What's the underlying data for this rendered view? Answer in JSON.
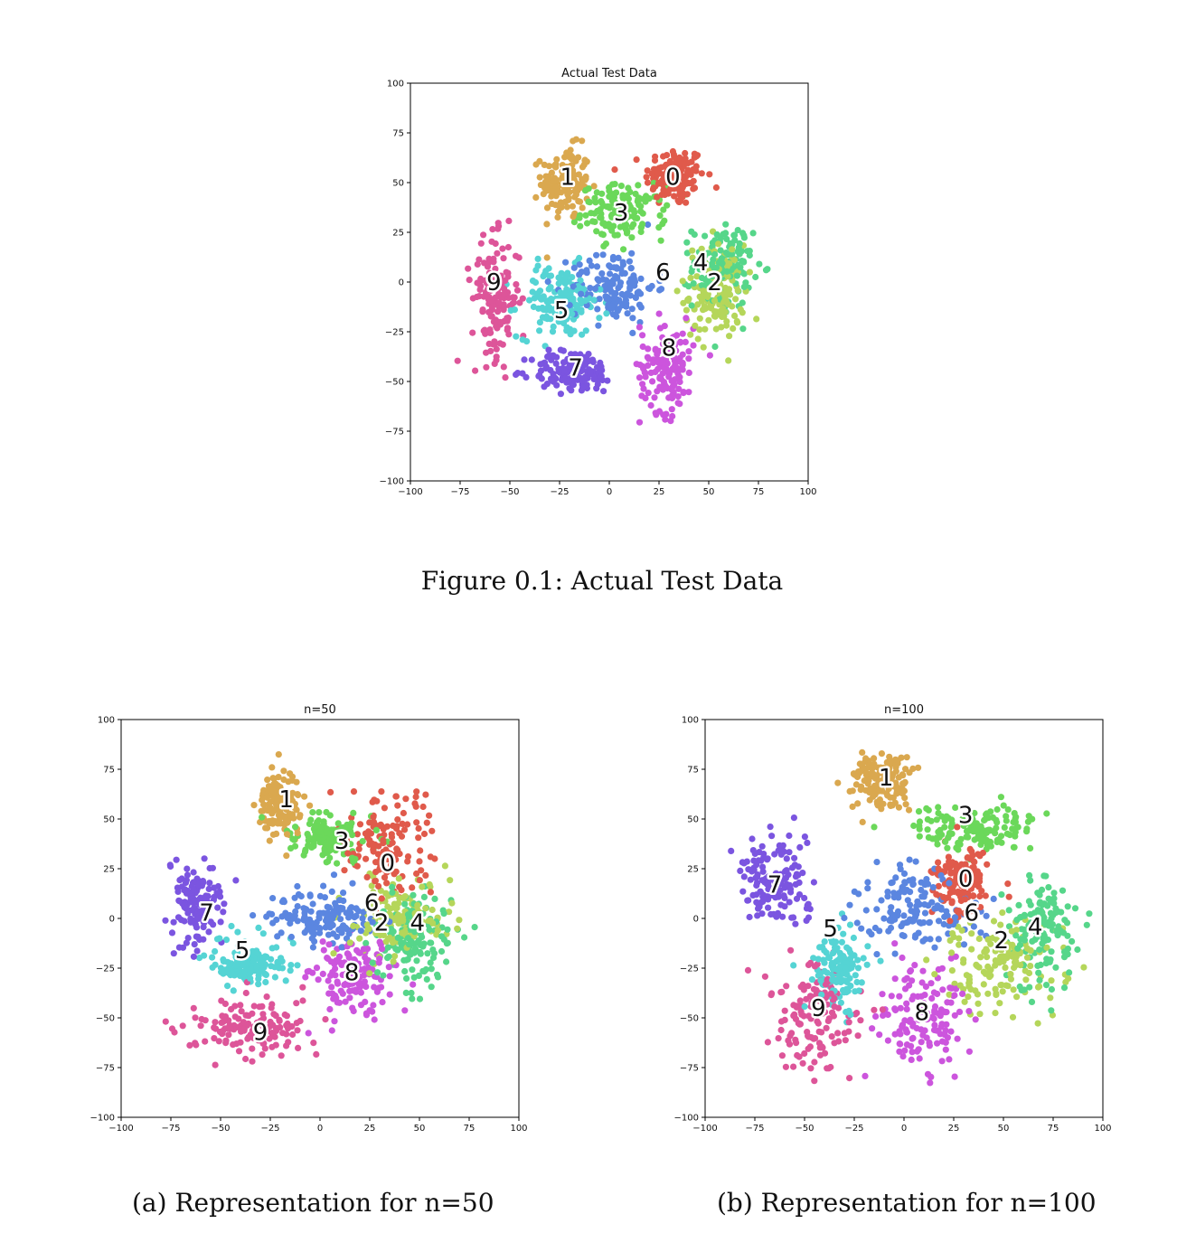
{
  "figure_caption": "Figure 0.1: Actual Test Data",
  "subcaption_a": "(a) Representation for n=50",
  "subcaption_b": "(b) Representation for n=100",
  "colors": {
    "0": "#e05a4b",
    "1": "#daa84f",
    "2": "#b5d65a",
    "3": "#6bd85a",
    "4": "#56d68a",
    "5": "#55d4d4",
    "6": "#5b86e0",
    "7": "#7b55e0",
    "8": "#cc55dd",
    "9": "#dd5599"
  },
  "chart_data": [
    {
      "type": "scatter",
      "title": "Actual Test Data",
      "xlim": [
        -100,
        100
      ],
      "ylim": [
        -100,
        100
      ],
      "xticks": [
        -100,
        -75,
        -50,
        -25,
        0,
        25,
        50,
        75,
        100
      ],
      "yticks": [
        -100,
        -75,
        -50,
        -25,
        0,
        25,
        50,
        75,
        100
      ],
      "grid": false,
      "clusters": [
        {
          "label": "0",
          "center": [
            33,
            53
          ],
          "spread": [
            10,
            10
          ]
        },
        {
          "label": "1",
          "center": [
            -22,
            50
          ],
          "spread": [
            8,
            12
          ]
        },
        {
          "label": "2",
          "center": [
            53,
            -5
          ],
          "spread": [
            10,
            16
          ]
        },
        {
          "label": "3",
          "center": [
            7,
            35
          ],
          "spread": [
            14,
            9
          ]
        },
        {
          "label": "4",
          "center": [
            57,
            8
          ],
          "spread": [
            10,
            14
          ]
        },
        {
          "label": "5",
          "center": [
            -25,
            -10
          ],
          "spread": [
            14,
            12
          ]
        },
        {
          "label": "6",
          "center": [
            2,
            -2
          ],
          "spread": [
            14,
            12
          ]
        },
        {
          "label": "7",
          "center": [
            -18,
            -45
          ],
          "spread": [
            14,
            7
          ]
        },
        {
          "label": "8",
          "center": [
            29,
            -42
          ],
          "spread": [
            9,
            16
          ]
        },
        {
          "label": "9",
          "center": [
            -57,
            -8
          ],
          "spread": [
            8,
            20
          ]
        }
      ],
      "annotations": [
        {
          "text": "0",
          "x": 32,
          "y": 53
        },
        {
          "text": "1",
          "x": -21,
          "y": 53
        },
        {
          "text": "3",
          "x": 6,
          "y": 35
        },
        {
          "text": "4",
          "x": 46,
          "y": 10
        },
        {
          "text": "6",
          "x": 27,
          "y": 5
        },
        {
          "text": "2",
          "x": 53,
          "y": 0
        },
        {
          "text": "9",
          "x": -58,
          "y": 0
        },
        {
          "text": "5",
          "x": -24,
          "y": -14
        },
        {
          "text": "8",
          "x": 30,
          "y": -33
        },
        {
          "text": "7",
          "x": -17,
          "y": -43
        }
      ]
    },
    {
      "type": "scatter",
      "title": "n=50",
      "xlim": [
        -100,
        100
      ],
      "ylim": [
        -100,
        100
      ],
      "xticks": [
        -100,
        -75,
        -50,
        -25,
        0,
        25,
        50,
        75,
        100
      ],
      "yticks": [
        -100,
        -75,
        -50,
        -25,
        0,
        25,
        50,
        75,
        100
      ],
      "grid": false,
      "clusters": [
        {
          "label": "0",
          "center": [
            33,
            35
          ],
          "spread": [
            14,
            16
          ]
        },
        {
          "label": "1",
          "center": [
            -20,
            57
          ],
          "spread": [
            7,
            12
          ]
        },
        {
          "label": "2",
          "center": [
            38,
            0
          ],
          "spread": [
            16,
            14
          ]
        },
        {
          "label": "3",
          "center": [
            5,
            40
          ],
          "spread": [
            12,
            8
          ]
        },
        {
          "label": "4",
          "center": [
            48,
            -8
          ],
          "spread": [
            14,
            16
          ]
        },
        {
          "label": "5",
          "center": [
            -35,
            -22
          ],
          "spread": [
            12,
            7
          ]
        },
        {
          "label": "6",
          "center": [
            0,
            0
          ],
          "spread": [
            18,
            9
          ]
        },
        {
          "label": "7",
          "center": [
            -62,
            8
          ],
          "spread": [
            9,
            14
          ]
        },
        {
          "label": "8",
          "center": [
            18,
            -28
          ],
          "spread": [
            14,
            14
          ]
        },
        {
          "label": "9",
          "center": [
            -35,
            -55
          ],
          "spread": [
            20,
            10
          ]
        }
      ],
      "annotations": [
        {
          "text": "1",
          "x": -17,
          "y": 60
        },
        {
          "text": "3",
          "x": 11,
          "y": 39
        },
        {
          "text": "0",
          "x": 34,
          "y": 28
        },
        {
          "text": "6",
          "x": 26,
          "y": 8
        },
        {
          "text": "2",
          "x": 31,
          "y": -2
        },
        {
          "text": "4",
          "x": 49,
          "y": -2
        },
        {
          "text": "7",
          "x": -57,
          "y": 3
        },
        {
          "text": "5",
          "x": -39,
          "y": -16
        },
        {
          "text": "8",
          "x": 16,
          "y": -27
        },
        {
          "text": "9",
          "x": -30,
          "y": -57
        }
      ]
    },
    {
      "type": "scatter",
      "title": "n=100",
      "xlim": [
        -100,
        100
      ],
      "ylim": [
        -100,
        100
      ],
      "xticks": [
        -100,
        -75,
        -50,
        -25,
        0,
        25,
        50,
        75,
        100
      ],
      "yticks": [
        -100,
        -75,
        -50,
        -25,
        0,
        25,
        50,
        75,
        100
      ],
      "grid": false,
      "clusters": [
        {
          "label": "0",
          "center": [
            30,
            18
          ],
          "spread": [
            10,
            10
          ]
        },
        {
          "label": "1",
          "center": [
            -12,
            68
          ],
          "spread": [
            12,
            10
          ]
        },
        {
          "label": "2",
          "center": [
            50,
            -22
          ],
          "spread": [
            20,
            16
          ]
        },
        {
          "label": "3",
          "center": [
            35,
            45
          ],
          "spread": [
            22,
            8
          ]
        },
        {
          "label": "4",
          "center": [
            70,
            -5
          ],
          "spread": [
            12,
            18
          ]
        },
        {
          "label": "5",
          "center": [
            -33,
            -25
          ],
          "spread": [
            8,
            14
          ]
        },
        {
          "label": "6",
          "center": [
            5,
            5
          ],
          "spread": [
            20,
            12
          ]
        },
        {
          "label": "7",
          "center": [
            -65,
            18
          ],
          "spread": [
            12,
            14
          ]
        },
        {
          "label": "8",
          "center": [
            10,
            -52
          ],
          "spread": [
            14,
            18
          ]
        },
        {
          "label": "9",
          "center": [
            -45,
            -50
          ],
          "spread": [
            14,
            18
          ]
        }
      ],
      "annotations": [
        {
          "text": "1",
          "x": -9,
          "y": 71
        },
        {
          "text": "3",
          "x": 31,
          "y": 52
        },
        {
          "text": "0",
          "x": 31,
          "y": 20
        },
        {
          "text": "6",
          "x": 34,
          "y": 3
        },
        {
          "text": "2",
          "x": 49,
          "y": -11
        },
        {
          "text": "4",
          "x": 66,
          "y": -4
        },
        {
          "text": "7",
          "x": -65,
          "y": 17
        },
        {
          "text": "5",
          "x": -37,
          "y": -5
        },
        {
          "text": "9",
          "x": -43,
          "y": -45
        },
        {
          "text": "8",
          "x": 9,
          "y": -47
        }
      ]
    }
  ]
}
